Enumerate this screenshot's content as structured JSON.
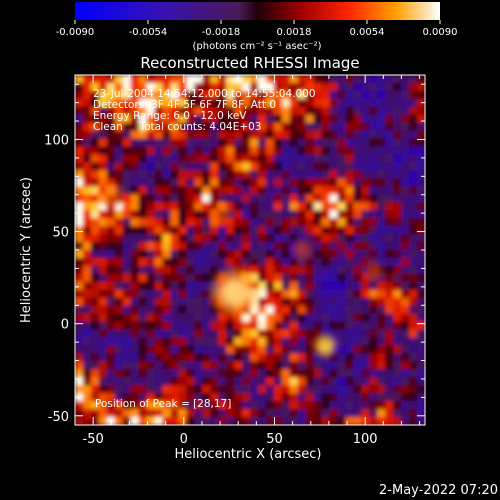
{
  "chart_data": {
    "type": "heatmap",
    "title": "Reconstructed RHESSI Image",
    "xlabel": "Heliocentric X (arcsec)",
    "ylabel": "Heliocentric Y (arcsec)",
    "xlim": [
      -60,
      133
    ],
    "ylim": [
      -55,
      135
    ],
    "x_ticks": [
      "-50",
      "0",
      "50",
      "100"
    ],
    "x_tick_values": [
      -50,
      0,
      50,
      100
    ],
    "y_ticks": [
      "-50",
      "0",
      "50",
      "100"
    ],
    "y_tick_values": [
      -50,
      0,
      50,
      100
    ],
    "colorbar": {
      "ticks": [
        "-0.0090",
        "-0.0054",
        "-0.0018",
        "0.0018",
        "0.0054",
        "0.0090"
      ],
      "range": [
        -0.009,
        0.009
      ],
      "unit_text": "(photons cm⁻² s⁻¹ asec⁻²)",
      "colormap": "blue-purple-red-yellow-white"
    },
    "annotations": [
      "23-Jul-2004 14:54:12.000 to 14:55:04.000",
      "Detectors: 3F 4F 5F 6F 7F 8F, Att 0",
      "Energy Range: 6.0 - 12.0 keV",
      "Clean     Total counts: 4.04E+03"
    ],
    "peak_label": "Position of Peak = [28,17]",
    "peak": [
      28,
      17
    ],
    "grid": false
  },
  "footer": {
    "timestamp": "2-May-2022 07:20"
  }
}
